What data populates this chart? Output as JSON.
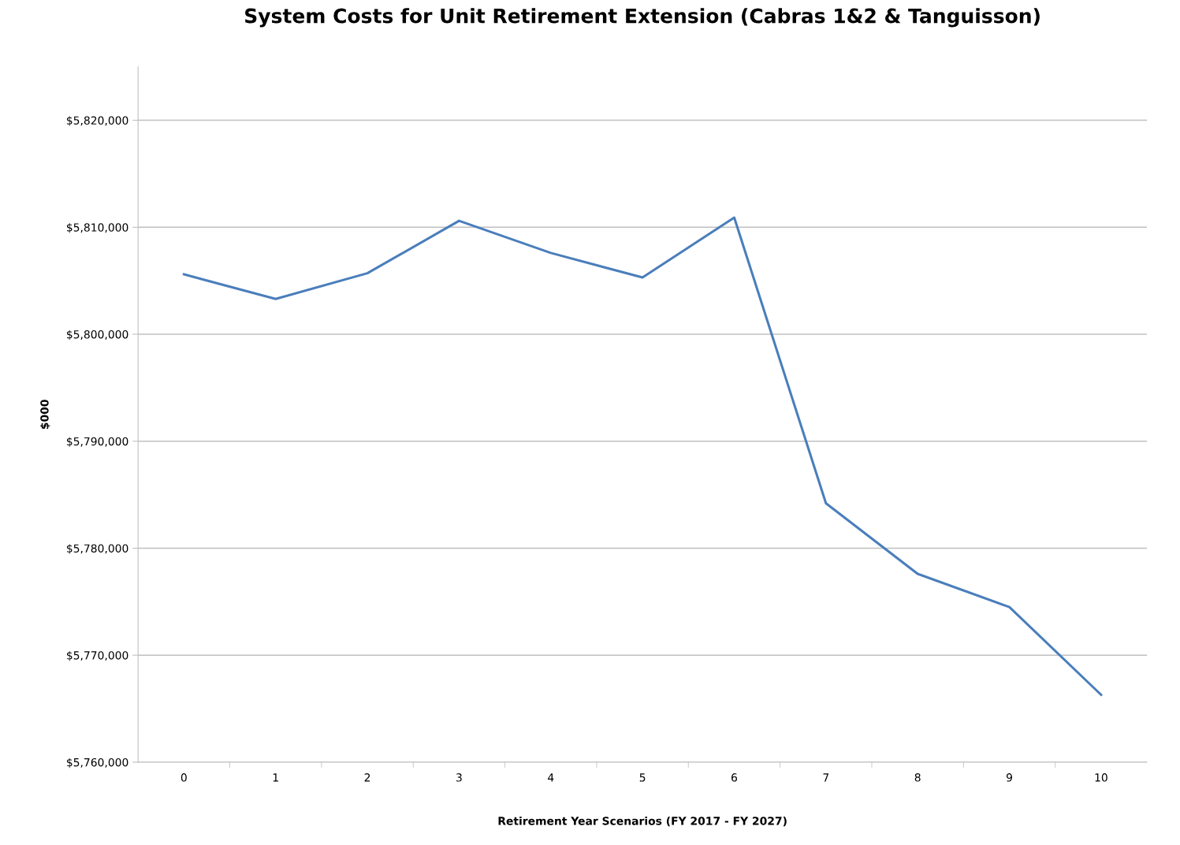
{
  "chart_data": {
    "type": "line",
    "title": "System Costs for Unit Retirement Extension (Cabras 1&2 & Tanguisson)",
    "xlabel": "Retirement Year Scenarios (FY 2017 - FY 2027)",
    "ylabel": "$000",
    "categories": [
      "0",
      "1",
      "2",
      "3",
      "4",
      "5",
      "6",
      "7",
      "8",
      "9",
      "10"
    ],
    "series": [
      {
        "color": "#4a7ebb",
        "values": [
          5805600,
          5803300,
          5805700,
          5810600,
          5807600,
          5805300,
          5810900,
          5784200,
          5777600,
          5774500,
          5766300
        ]
      }
    ],
    "ylim": [
      5760000,
      5825000
    ],
    "yticks": [
      {
        "value": 5760000,
        "label": "$5,760,000"
      },
      {
        "value": 5770000,
        "label": "$5,770,000"
      },
      {
        "value": 5780000,
        "label": "$5,780,000"
      },
      {
        "value": 5790000,
        "label": "$5,790,000"
      },
      {
        "value": 5800000,
        "label": "$5,800,000"
      },
      {
        "value": 5810000,
        "label": "$5,810,000"
      },
      {
        "value": 5820000,
        "label": "$5,820,000"
      }
    ],
    "grid": "y",
    "legend": false,
    "marker": "none",
    "line_style": "solid"
  }
}
